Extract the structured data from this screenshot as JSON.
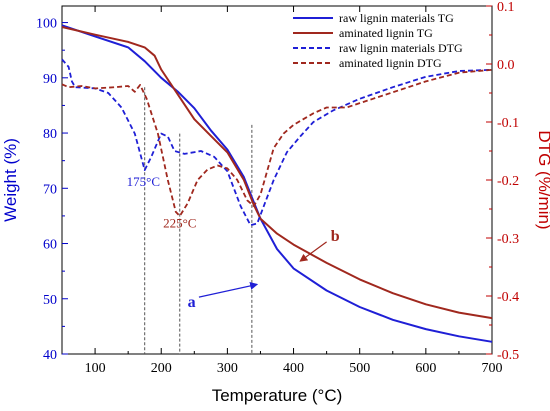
{
  "chart_data": {
    "type": "line",
    "x_axis": {
      "label": "Temperature (°C)",
      "range": [
        50,
        700
      ],
      "ticks": [
        "100",
        "200",
        "300",
        "400",
        "500",
        "600",
        "700"
      ],
      "tick_values": [
        100,
        200,
        300,
        400,
        500,
        600,
        700
      ]
    },
    "y_left": {
      "label": "Weight (%)",
      "color": "#0000cc",
      "range": [
        40,
        103
      ],
      "ticks": [
        "40",
        "50",
        "60",
        "70",
        "80",
        "90",
        "100"
      ],
      "tick_values": [
        40,
        50,
        60,
        70,
        80,
        90,
        100
      ]
    },
    "y_right": {
      "label": "DTG (%/min)",
      "color": "#c00000",
      "range": [
        -0.5,
        0.1
      ],
      "ticks": [
        "0.1",
        "0.0",
        "-0.1",
        "-0.2",
        "-0.3",
        "-0.4",
        "-0.5"
      ],
      "tick_values": [
        0.1,
        0.0,
        -0.1,
        -0.2,
        -0.3,
        -0.4,
        -0.5
      ]
    },
    "legend": {
      "placement": "top-right",
      "entries": [
        "raw lignin materials TG",
        "aminated lignin TG",
        "raw lignin materials DTG",
        "aminated lignin DTG"
      ]
    },
    "series": [
      {
        "name": "raw lignin materials TG",
        "axis": "left",
        "color": "#1f1fd6",
        "dash": "solid",
        "points": [
          [
            50,
            99.5
          ],
          [
            100,
            97.5
          ],
          [
            150,
            95.5
          ],
          [
            175,
            93
          ],
          [
            200,
            90
          ],
          [
            225,
            87.5
          ],
          [
            250,
            84.5
          ],
          [
            275,
            80.5
          ],
          [
            300,
            77
          ],
          [
            325,
            72
          ],
          [
            340,
            67.5
          ],
          [
            350,
            64.5
          ],
          [
            375,
            59
          ],
          [
            400,
            55.5
          ],
          [
            450,
            51.5
          ],
          [
            500,
            48.5
          ],
          [
            550,
            46.2
          ],
          [
            600,
            44.5
          ],
          [
            650,
            43.2
          ],
          [
            700,
            42.2
          ]
        ]
      },
      {
        "name": "aminated lignin TG",
        "axis": "left",
        "color": "#a0281e",
        "dash": "solid",
        "points": [
          [
            50,
            99.2
          ],
          [
            100,
            97.8
          ],
          [
            150,
            96.5
          ],
          [
            175,
            95.5
          ],
          [
            190,
            94
          ],
          [
            200,
            91.5
          ],
          [
            225,
            87
          ],
          [
            250,
            82.5
          ],
          [
            275,
            79.5
          ],
          [
            300,
            76.5
          ],
          [
            325,
            71.5
          ],
          [
            340,
            67
          ],
          [
            350,
            64.5
          ],
          [
            375,
            61.8
          ],
          [
            400,
            59.8
          ],
          [
            450,
            56.5
          ],
          [
            500,
            53.5
          ],
          [
            550,
            51
          ],
          [
            600,
            49
          ],
          [
            650,
            47.5
          ],
          [
            700,
            46.5
          ]
        ]
      },
      {
        "name": "raw lignin materials DTG",
        "axis": "right",
        "color": "#1f1fd6",
        "dash": "dashed",
        "points": [
          [
            50,
            0.008
          ],
          [
            60,
            -0.005
          ],
          [
            65,
            -0.03
          ],
          [
            70,
            -0.04
          ],
          [
            100,
            -0.042
          ],
          [
            120,
            -0.05
          ],
          [
            140,
            -0.075
          ],
          [
            160,
            -0.12
          ],
          [
            175,
            -0.183
          ],
          [
            185,
            -0.16
          ],
          [
            200,
            -0.12
          ],
          [
            210,
            -0.125
          ],
          [
            220,
            -0.15
          ],
          [
            235,
            -0.155
          ],
          [
            260,
            -0.15
          ],
          [
            280,
            -0.16
          ],
          [
            300,
            -0.185
          ],
          [
            320,
            -0.245
          ],
          [
            335,
            -0.278
          ],
          [
            345,
            -0.275
          ],
          [
            355,
            -0.245
          ],
          [
            370,
            -0.2
          ],
          [
            390,
            -0.152
          ],
          [
            410,
            -0.125
          ],
          [
            430,
            -0.1
          ],
          [
            460,
            -0.08
          ],
          [
            500,
            -0.06
          ],
          [
            550,
            -0.04
          ],
          [
            600,
            -0.022
          ],
          [
            650,
            -0.012
          ],
          [
            700,
            -0.01
          ]
        ]
      },
      {
        "name": "aminated lignin DTG",
        "axis": "right",
        "color": "#a0281e",
        "dash": "dashed",
        "points": [
          [
            50,
            -0.035
          ],
          [
            60,
            -0.04
          ],
          [
            80,
            -0.038
          ],
          [
            100,
            -0.042
          ],
          [
            130,
            -0.04
          ],
          [
            150,
            -0.038
          ],
          [
            160,
            -0.048
          ],
          [
            168,
            -0.036
          ],
          [
            178,
            -0.06
          ],
          [
            195,
            -0.12
          ],
          [
            210,
            -0.2
          ],
          [
            222,
            -0.255
          ],
          [
            228,
            -0.262
          ],
          [
            240,
            -0.24
          ],
          [
            255,
            -0.2
          ],
          [
            270,
            -0.182
          ],
          [
            285,
            -0.175
          ],
          [
            300,
            -0.18
          ],
          [
            315,
            -0.2
          ],
          [
            330,
            -0.235
          ],
          [
            340,
            -0.245
          ],
          [
            350,
            -0.225
          ],
          [
            360,
            -0.185
          ],
          [
            370,
            -0.145
          ],
          [
            385,
            -0.12
          ],
          [
            400,
            -0.105
          ],
          [
            430,
            -0.085
          ],
          [
            450,
            -0.075
          ],
          [
            480,
            -0.075
          ],
          [
            520,
            -0.06
          ],
          [
            560,
            -0.045
          ],
          [
            600,
            -0.03
          ],
          [
            650,
            -0.015
          ],
          [
            700,
            -0.01
          ]
        ]
      }
    ],
    "vlines": [
      {
        "x": 175,
        "y_top": -0.04,
        "color": "#555555"
      },
      {
        "x": 228,
        "y_top": -0.12,
        "color": "#555555"
      },
      {
        "x": 337,
        "y_top": -0.105,
        "color": "#555555"
      }
    ],
    "annotations": [
      {
        "text": "175°C",
        "x": 173,
        "y": -0.21,
        "axis": "right",
        "color": "#1f1fd6"
      },
      {
        "text": "225°C",
        "x": 228,
        "y": -0.282,
        "axis": "right",
        "color": "#a0281e"
      },
      {
        "text": "a",
        "x": 246,
        "y": 48.5,
        "axis": "left",
        "color": "#1f1fd6"
      },
      {
        "text": "b",
        "x": 463,
        "y": 60.5,
        "axis": "left",
        "color": "#a0281e"
      }
    ],
    "arrows": [
      {
        "from": [
          257,
          50.3
        ],
        "to": [
          345,
          52.6
        ],
        "axis": "left",
        "color": "#1f1fd6"
      },
      {
        "from": [
          450,
          60.3
        ],
        "to": [
          410,
          56.8
        ],
        "axis": "left",
        "color": "#a0281e"
      }
    ]
  }
}
